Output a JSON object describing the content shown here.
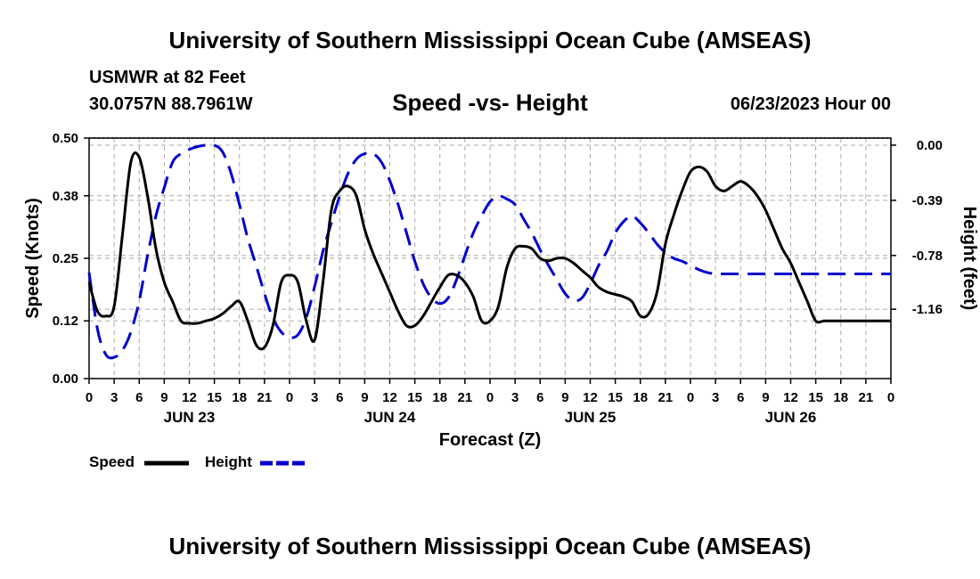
{
  "header": {
    "title": "University of Southern Mississippi Ocean Cube (AMSEAS)",
    "station": "USMWR at 82 Feet",
    "coords": "30.0757N  88.7961W",
    "subtitle": "Speed -vs- Height",
    "datetime": "06/23/2023 Hour 00"
  },
  "footer": {
    "title": "University of Southern Mississippi Ocean Cube (AMSEAS)"
  },
  "chart_data": {
    "type": "line",
    "xlabel": "Forecast (Z)",
    "ylabel": "Speed (Knots)",
    "y2label": "Height (feet)",
    "x_unit": "hours",
    "xlim": [
      0,
      96
    ],
    "ylim": [
      0,
      0.5
    ],
    "y2lim": [
      -1.65,
      0.05
    ],
    "grid": true,
    "x_tick_labels": [
      "0",
      "3",
      "6",
      "9",
      "12",
      "15",
      "18",
      "21",
      "0",
      "3",
      "6",
      "9",
      "12",
      "15",
      "18",
      "21",
      "0",
      "3",
      "6",
      "9",
      "12",
      "15",
      "18",
      "21",
      "0",
      "3",
      "6",
      "9",
      "12",
      "15",
      "18",
      "21",
      "0"
    ],
    "date_labels": [
      {
        "label": "JUN 23",
        "hour": 12
      },
      {
        "label": "JUN 24",
        "hour": 36
      },
      {
        "label": "JUN 25",
        "hour": 60
      },
      {
        "label": "JUN 26",
        "hour": 84
      }
    ],
    "y_ticks": [
      0.0,
      0.12,
      0.25,
      0.38,
      0.5
    ],
    "y_tick_labels": [
      "0.00",
      "0.12",
      "0.25",
      "0.38",
      "0.50"
    ],
    "y2_ticks": [
      0.0,
      -0.39,
      -0.78,
      -1.16
    ],
    "y2_tick_labels": [
      "0.00",
      "-0.39",
      "-0.78",
      "-1.16"
    ],
    "legend_position": "bottom-left",
    "series": [
      {
        "name": "Speed",
        "axis": "left",
        "color": "#000000",
        "style": "solid",
        "x": [
          0,
          1,
          2,
          3,
          4,
          5,
          6,
          7,
          8,
          9,
          10,
          11,
          12,
          13,
          14,
          15,
          16,
          17,
          18,
          19,
          20,
          21,
          22,
          23,
          24,
          25,
          26,
          27,
          28,
          29,
          30,
          31,
          32,
          33,
          34,
          35,
          36,
          37,
          38,
          39,
          40,
          41,
          42,
          43,
          44,
          45,
          46,
          47,
          48,
          49,
          50,
          51,
          52,
          53,
          54,
          55,
          56,
          57,
          58,
          59,
          60,
          61,
          62,
          63,
          64,
          65,
          66,
          67,
          68,
          69,
          70,
          71,
          72,
          73,
          74,
          75,
          76,
          77,
          78,
          79,
          80,
          81,
          82,
          83,
          84,
          85,
          86,
          87,
          88,
          89,
          90,
          91,
          92,
          93,
          94,
          95,
          96
        ],
        "values": [
          0.2,
          0.14,
          0.13,
          0.15,
          0.3,
          0.45,
          0.46,
          0.38,
          0.27,
          0.2,
          0.16,
          0.12,
          0.115,
          0.115,
          0.12,
          0.125,
          0.135,
          0.15,
          0.16,
          0.12,
          0.07,
          0.065,
          0.11,
          0.2,
          0.215,
          0.2,
          0.12,
          0.08,
          0.2,
          0.35,
          0.39,
          0.4,
          0.38,
          0.31,
          0.26,
          0.22,
          0.18,
          0.14,
          0.11,
          0.11,
          0.13,
          0.16,
          0.19,
          0.215,
          0.215,
          0.2,
          0.17,
          0.12,
          0.12,
          0.15,
          0.23,
          0.27,
          0.275,
          0.27,
          0.25,
          0.245,
          0.25,
          0.25,
          0.24,
          0.225,
          0.21,
          0.19,
          0.18,
          0.175,
          0.17,
          0.16,
          0.13,
          0.135,
          0.18,
          0.28,
          0.34,
          0.39,
          0.43,
          0.44,
          0.43,
          0.4,
          0.39,
          0.4,
          0.41,
          0.4,
          0.38,
          0.35,
          0.31,
          0.27,
          0.24,
          0.2,
          0.16,
          0.12,
          0.12,
          0.12,
          0.12,
          0.12,
          0.12,
          0.12,
          0.12,
          0.12,
          0.12
        ]
      },
      {
        "name": "Height",
        "axis": "right",
        "color": "#0000cc",
        "style": "dashed",
        "x": [
          0,
          1,
          2,
          3,
          4,
          5,
          6,
          7,
          8,
          9,
          10,
          11,
          12,
          13,
          14,
          15,
          16,
          17,
          18,
          19,
          20,
          21,
          22,
          23,
          24,
          25,
          26,
          27,
          28,
          29,
          30,
          31,
          32,
          33,
          34,
          35,
          36,
          37,
          38,
          39,
          40,
          41,
          42,
          43,
          44,
          45,
          46,
          47,
          48,
          49,
          50,
          51,
          52,
          53,
          54,
          55,
          56,
          57,
          58,
          59,
          60,
          61,
          62,
          63,
          64,
          65,
          66,
          67,
          68,
          69,
          70,
          71,
          72,
          73,
          74,
          75,
          76,
          77,
          78,
          79,
          80,
          81,
          82,
          83,
          84,
          85,
          86,
          87,
          88,
          89,
          90,
          91,
          92,
          93,
          94,
          95,
          96
        ],
        "values": [
          -0.9,
          -1.3,
          -1.48,
          -1.5,
          -1.45,
          -1.32,
          -1.1,
          -0.78,
          -0.5,
          -0.3,
          -0.12,
          -0.06,
          -0.03,
          -0.01,
          0.0,
          0.0,
          -0.05,
          -0.2,
          -0.42,
          -0.66,
          -0.85,
          -1.05,
          -1.22,
          -1.32,
          -1.36,
          -1.34,
          -1.22,
          -1.0,
          -0.75,
          -0.55,
          -0.36,
          -0.2,
          -0.1,
          -0.06,
          -0.06,
          -0.12,
          -0.25,
          -0.42,
          -0.62,
          -0.82,
          -0.98,
          -1.08,
          -1.12,
          -1.08,
          -0.95,
          -0.78,
          -0.62,
          -0.5,
          -0.4,
          -0.36,
          -0.38,
          -0.42,
          -0.52,
          -0.62,
          -0.74,
          -0.85,
          -0.95,
          -1.05,
          -1.1,
          -1.08,
          -0.98,
          -0.85,
          -0.75,
          -0.62,
          -0.54,
          -0.5,
          -0.55,
          -0.62,
          -0.7,
          -0.76,
          -0.8,
          -0.82,
          -0.85,
          -0.88,
          -0.9,
          -0.91,
          -0.91,
          -0.91,
          -0.91,
          -0.91,
          -0.91,
          -0.91,
          -0.91,
          -0.91,
          -0.91,
          -0.91,
          -0.91,
          -0.91,
          -0.91,
          -0.91,
          -0.91,
          -0.91,
          -0.91,
          -0.91,
          -0.91,
          -0.91,
          -0.91
        ]
      }
    ]
  }
}
